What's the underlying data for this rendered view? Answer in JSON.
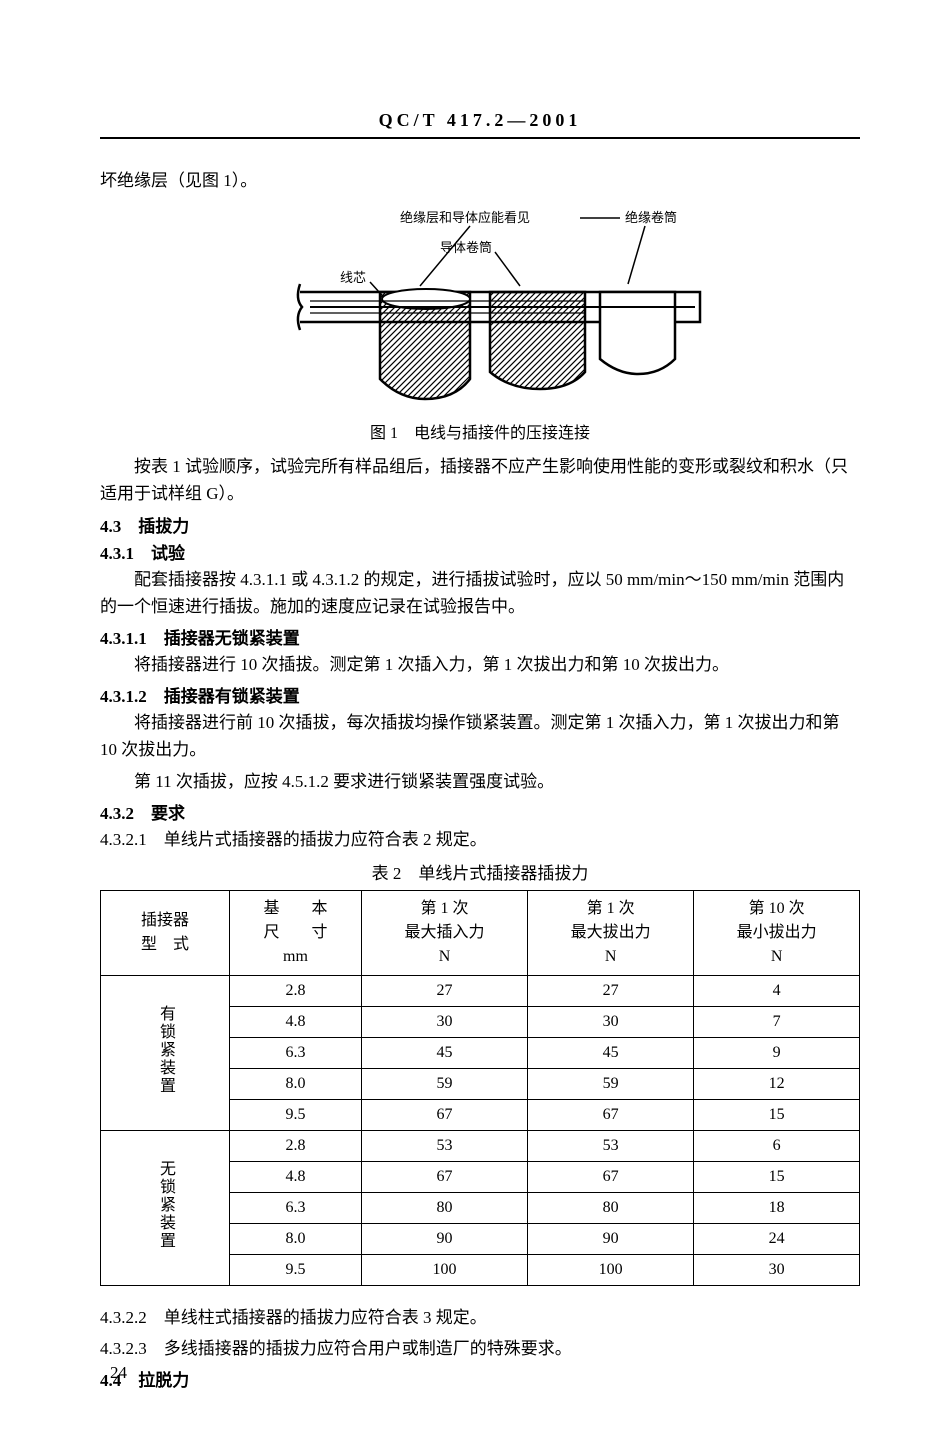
{
  "header": "QC/T 417.2—2001",
  "intro_line": "坏绝缘层（见图 1）。",
  "figure1": {
    "labels": {
      "layer_conductor": "绝缘层和导体应能看见",
      "insulation_wrap": "绝缘卷筒",
      "conductor_wrap": "导体卷筒",
      "core": "线芯"
    },
    "caption": "图 1　电线与插接件的压接连接"
  },
  "para_after_fig": "按表 1 试验顺序，试验完所有样品组后，插接器不应产生影响使用性能的变形或裂纹和积水（只适用于试样组 G）。",
  "s43": "4.3　插拔力",
  "s431": "4.3.1　试验",
  "s431_text": "配套插接器按 4.3.1.1 或 4.3.1.2 的规定，进行插拔试验时，应以 50 mm/min～150 mm/min 范围内的一个恒速进行插拔。施加的速度应记录在试验报告中。",
  "s4311": "4.3.1.1　插接器无锁紧装置",
  "s4311_text": "将插接器进行 10 次插拔。测定第 1 次插入力，第 1 次拔出力和第 10 次拔出力。",
  "s4312": "4.3.1.2　插接器有锁紧装置",
  "s4312_text1": "将插接器进行前 10 次插拔，每次插拔均操作锁紧装置。测定第 1 次插入力，第 1 次拔出力和第 10 次拔出力。",
  "s4312_text2": "第 11 次插拔，应按 4.5.1.2 要求进行锁紧装置强度试验。",
  "s432": "4.3.2　要求",
  "s4321": "4.3.2.1　单线片式插接器的插拔力应符合表 2 规定。",
  "table2": {
    "caption": "表 2　单线片式插接器插拔力",
    "columns": {
      "c1": "插接器\n型　式",
      "c2_l1": "基　　本",
      "c2_l2": "尺　　寸",
      "c2_l3": "mm",
      "c3_l1": "第 1 次",
      "c3_l2": "最大插入力",
      "c3_l3": "N",
      "c4_l1": "第 1 次",
      "c4_l2": "最大拔出力",
      "c4_l3": "N",
      "c5_l1": "第 10 次",
      "c5_l2": "最小拔出力",
      "c5_l3": "N"
    },
    "group1_label": "有锁紧装置",
    "group2_label": "无锁紧装置",
    "group1": [
      {
        "size": "2.8",
        "in1": "27",
        "out1": "27",
        "out10": "4"
      },
      {
        "size": "4.8",
        "in1": "30",
        "out1": "30",
        "out10": "7"
      },
      {
        "size": "6.3",
        "in1": "45",
        "out1": "45",
        "out10": "9"
      },
      {
        "size": "8.0",
        "in1": "59",
        "out1": "59",
        "out10": "12"
      },
      {
        "size": "9.5",
        "in1": "67",
        "out1": "67",
        "out10": "15"
      }
    ],
    "group2": [
      {
        "size": "2.8",
        "in1": "53",
        "out1": "53",
        "out10": "6"
      },
      {
        "size": "4.8",
        "in1": "67",
        "out1": "67",
        "out10": "15"
      },
      {
        "size": "6.3",
        "in1": "80",
        "out1": "80",
        "out10": "18"
      },
      {
        "size": "8.0",
        "in1": "90",
        "out1": "90",
        "out10": "24"
      },
      {
        "size": "9.5",
        "in1": "100",
        "out1": "100",
        "out10": "30"
      }
    ]
  },
  "s4322": "4.3.2.2　单线柱式插接器的插拔力应符合表 3 规定。",
  "s4323": "4.3.2.3　多线插接器的插拔力应符合用户或制造厂的特殊要求。",
  "s44": "4.4　拉脱力",
  "page_number": "24"
}
